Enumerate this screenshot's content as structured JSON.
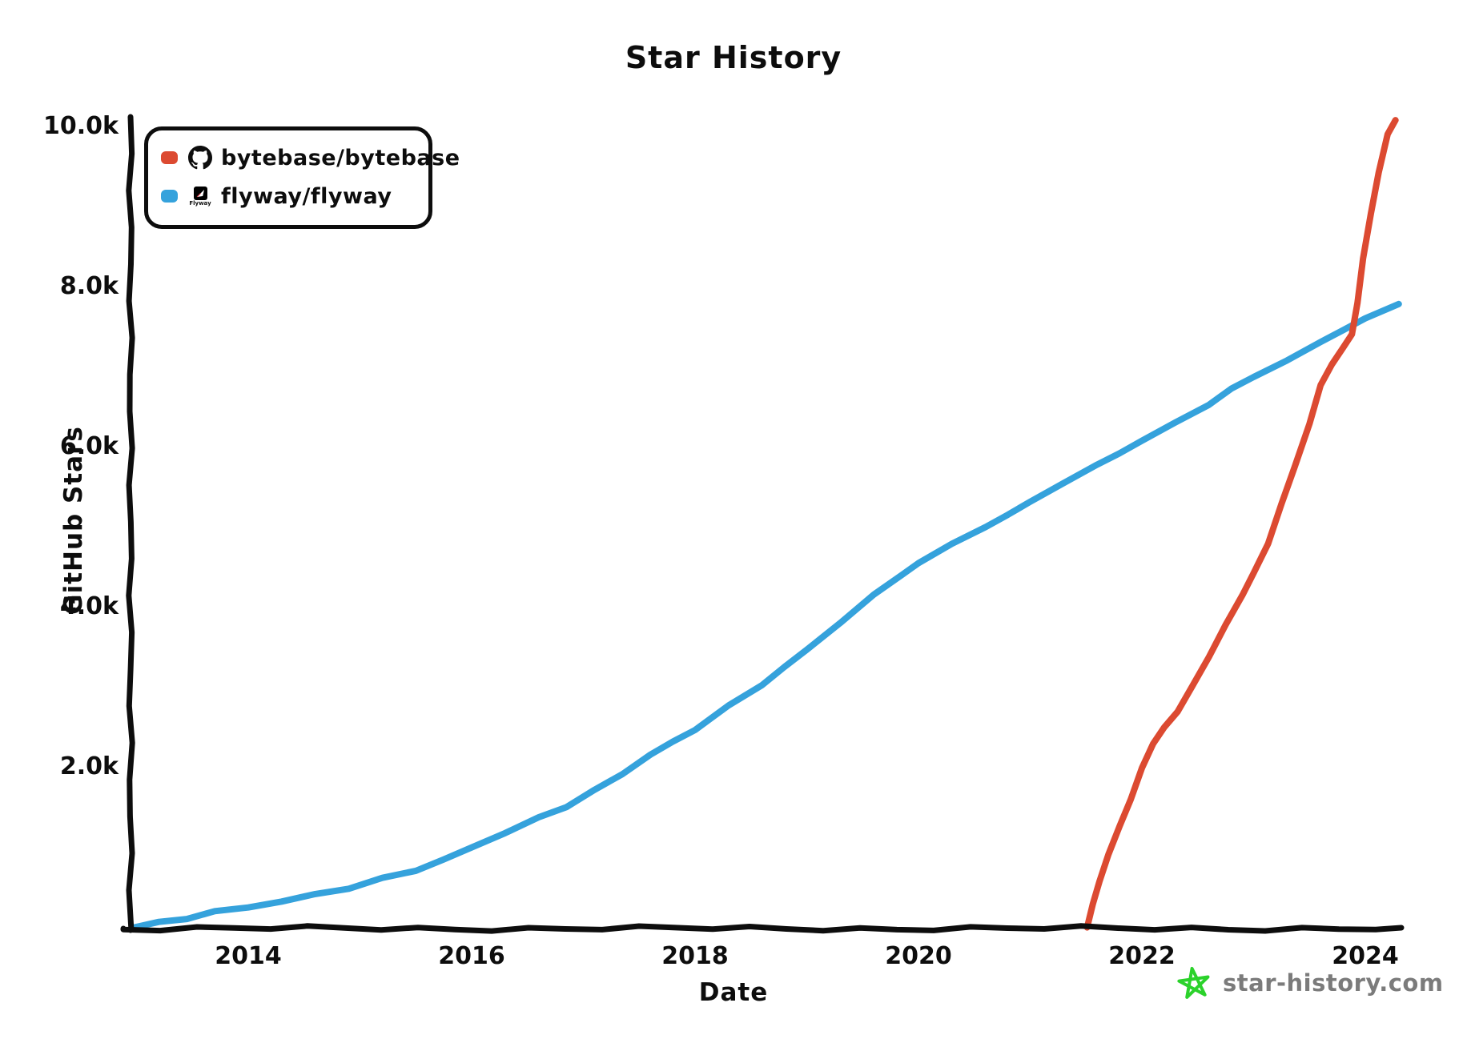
{
  "title": "Star History",
  "legend": {
    "items": [
      {
        "label": "bytebase/bytebase",
        "color": "#dc4a31",
        "icon": "github-icon"
      },
      {
        "label": "flyway/flyway",
        "color": "#35a2dc",
        "icon": "flyway-icon"
      }
    ]
  },
  "watermark": {
    "label": "star-history.com",
    "text_color": "#7b7b7b",
    "star_color": "#2bd22b"
  },
  "chart_data": {
    "type": "line",
    "title": "Star History",
    "xlabel": "Date",
    "ylabel": "GitHub Stars",
    "grid": false,
    "legend_position": "top-left",
    "x_range": [
      2012.95,
      2024.35
    ],
    "y_range": [
      0,
      10000
    ],
    "x_ticks": [
      "2014",
      "2016",
      "2018",
      "2020",
      "2022",
      "2024"
    ],
    "x_tick_values": [
      2014,
      2016,
      2018,
      2020,
      2022,
      2024
    ],
    "y_ticks": [
      "2.0k",
      "4.0k",
      "6.0k",
      "8.0k",
      "10.0k"
    ],
    "y_tick_values": [
      2000,
      4000,
      6000,
      8000,
      10000
    ],
    "series": [
      {
        "name": "flyway/flyway",
        "color": "#35a2dc",
        "points": [
          [
            2012.97,
            10
          ],
          [
            2013.2,
            60
          ],
          [
            2013.45,
            115
          ],
          [
            2013.7,
            175
          ],
          [
            2014.0,
            240
          ],
          [
            2014.3,
            325
          ],
          [
            2014.6,
            410
          ],
          [
            2014.9,
            495
          ],
          [
            2015.2,
            590
          ],
          [
            2015.5,
            700
          ],
          [
            2015.75,
            840
          ],
          [
            2016.0,
            1010
          ],
          [
            2016.3,
            1180
          ],
          [
            2016.6,
            1350
          ],
          [
            2016.85,
            1500
          ],
          [
            2017.1,
            1700
          ],
          [
            2017.35,
            1930
          ],
          [
            2017.6,
            2150
          ],
          [
            2017.8,
            2320
          ],
          [
            2018.0,
            2460
          ],
          [
            2018.3,
            2760
          ],
          [
            2018.6,
            3010
          ],
          [
            2018.8,
            3260
          ],
          [
            2019.0,
            3480
          ],
          [
            2019.3,
            3800
          ],
          [
            2019.6,
            4130
          ],
          [
            2019.85,
            4400
          ],
          [
            2020.0,
            4550
          ],
          [
            2020.3,
            4800
          ],
          [
            2020.6,
            4990
          ],
          [
            2020.8,
            5150
          ],
          [
            2021.0,
            5310
          ],
          [
            2021.3,
            5540
          ],
          [
            2021.6,
            5770
          ],
          [
            2021.8,
            5930
          ],
          [
            2022.0,
            6090
          ],
          [
            2022.3,
            6300
          ],
          [
            2022.6,
            6500
          ],
          [
            2022.8,
            6720
          ],
          [
            2023.0,
            6880
          ],
          [
            2023.3,
            7090
          ],
          [
            2023.6,
            7300
          ],
          [
            2023.8,
            7450
          ],
          [
            2024.0,
            7600
          ],
          [
            2024.3,
            7780
          ]
        ]
      },
      {
        "name": "bytebase/bytebase",
        "color": "#dc4a31",
        "points": [
          [
            2021.51,
            0
          ],
          [
            2021.56,
            280
          ],
          [
            2021.62,
            560
          ],
          [
            2021.7,
            900
          ],
          [
            2021.8,
            1270
          ],
          [
            2021.9,
            1620
          ],
          [
            2022.0,
            2000
          ],
          [
            2022.1,
            2280
          ],
          [
            2022.2,
            2480
          ],
          [
            2022.32,
            2690
          ],
          [
            2022.45,
            3010
          ],
          [
            2022.6,
            3350
          ],
          [
            2022.75,
            3760
          ],
          [
            2022.9,
            4160
          ],
          [
            2023.0,
            4430
          ],
          [
            2023.13,
            4780
          ],
          [
            2023.25,
            5290
          ],
          [
            2023.37,
            5780
          ],
          [
            2023.5,
            6300
          ],
          [
            2023.6,
            6760
          ],
          [
            2023.7,
            7010
          ],
          [
            2023.8,
            7230
          ],
          [
            2023.88,
            7410
          ],
          [
            2023.93,
            7800
          ],
          [
            2023.98,
            8350
          ],
          [
            2024.05,
            8900
          ],
          [
            2024.12,
            9400
          ],
          [
            2024.2,
            9880
          ],
          [
            2024.27,
            10070
          ]
        ]
      }
    ]
  }
}
